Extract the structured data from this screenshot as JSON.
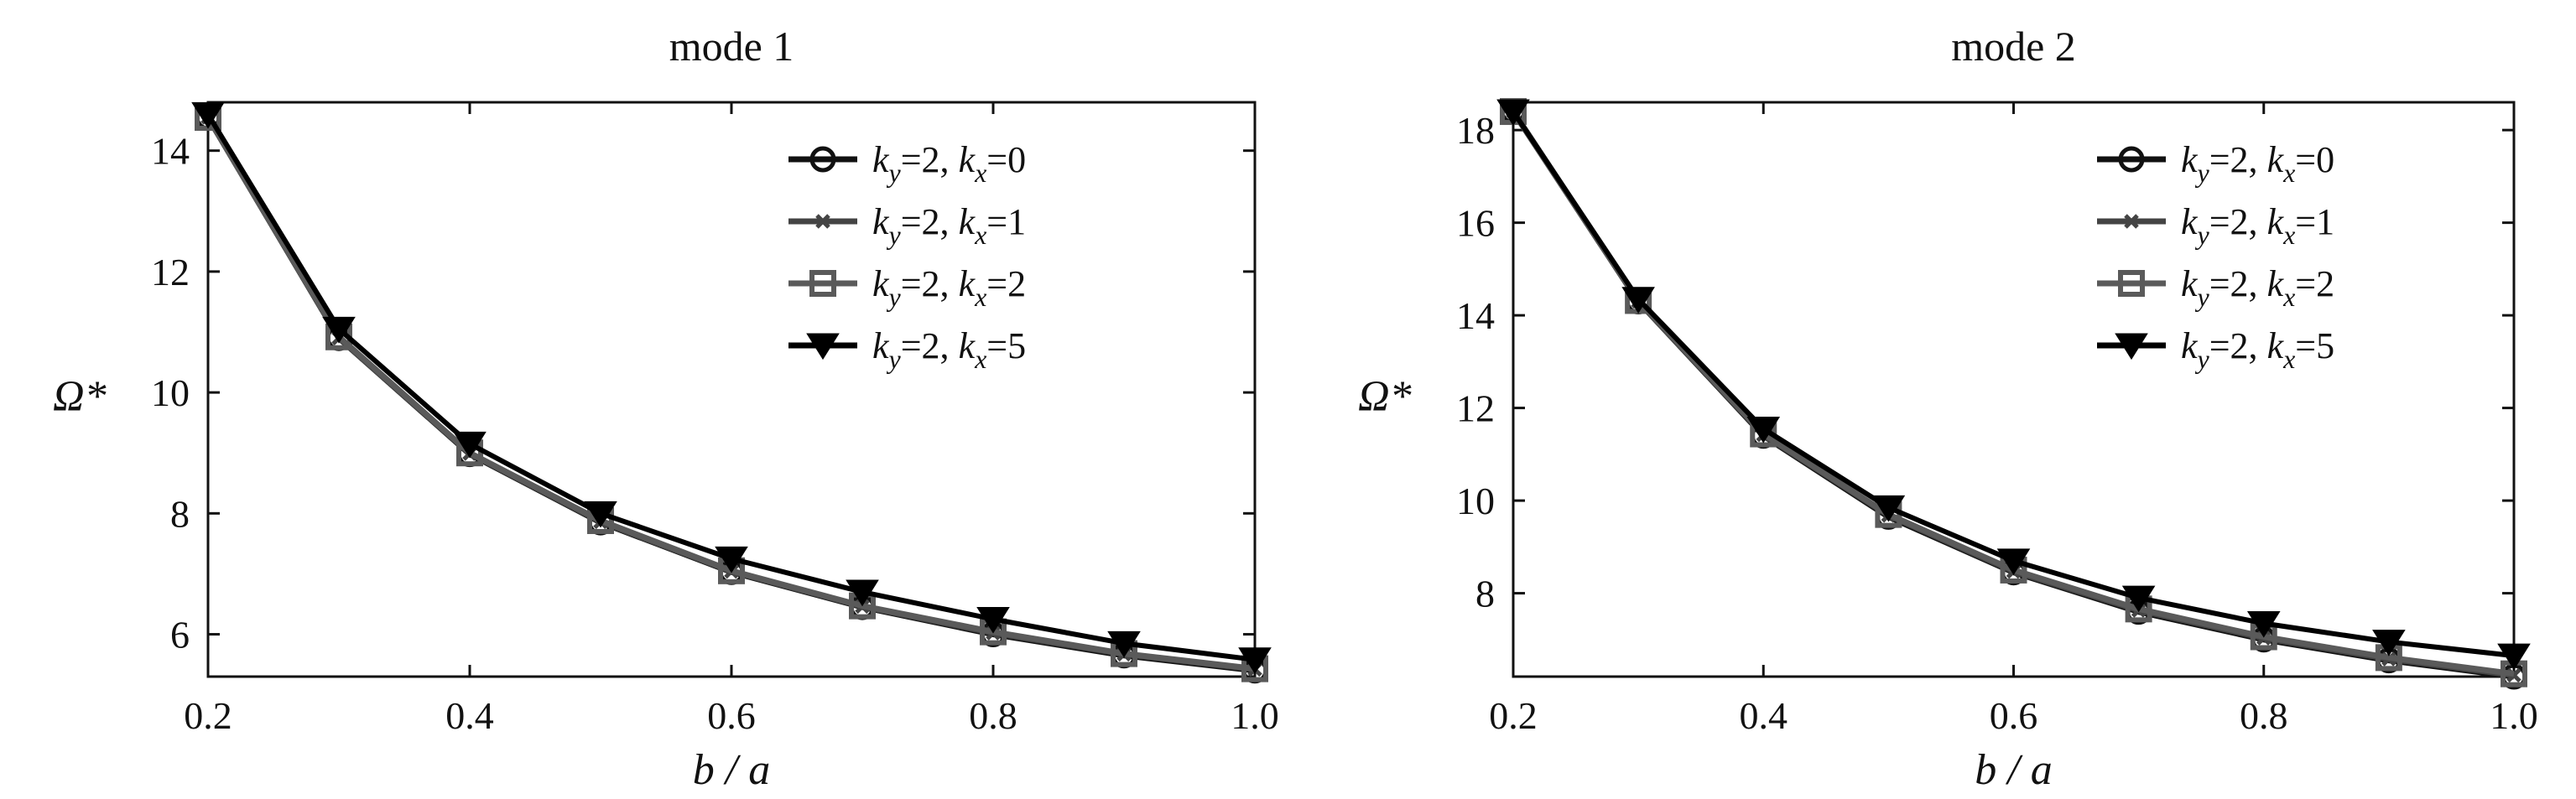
{
  "chart_data": [
    {
      "type": "line",
      "title": "mode 1",
      "xlabel": "b / a",
      "ylabel": "Ω*",
      "xlim": [
        0.2,
        1.0
      ],
      "ylim": [
        5.3,
        14.8
      ],
      "xticks": [
        0.2,
        0.4,
        0.6,
        0.8,
        1.0
      ],
      "xtick_labels": [
        "0.2",
        "0.4",
        "0.6",
        "0.8",
        "1.0"
      ],
      "yticks": [
        6,
        8,
        10,
        12,
        14
      ],
      "ytick_labels": [
        "6",
        "8",
        "10",
        "12",
        "14"
      ],
      "grid": false,
      "legend_position": "top-right",
      "x": [
        0.2,
        0.3,
        0.4,
        0.5,
        0.6,
        0.7,
        0.8,
        0.9,
        1.0
      ],
      "series": [
        {
          "name": "ky=2, kx=0",
          "legend_parts": [
            "k",
            "y",
            "=2, ",
            "k",
            "x",
            "=0"
          ],
          "marker": "circle",
          "color": "#111111",
          "values": [
            14.55,
            10.9,
            8.98,
            7.85,
            7.03,
            6.45,
            6.0,
            5.65,
            5.4
          ]
        },
        {
          "name": "ky=2, kx=1",
          "legend_parts": [
            "k",
            "y",
            "=2, ",
            "k",
            "x",
            "=1"
          ],
          "marker": "x",
          "color": "#444444",
          "values": [
            14.55,
            10.9,
            8.99,
            7.86,
            7.04,
            6.46,
            6.02,
            5.67,
            5.42
          ]
        },
        {
          "name": "ky=2, kx=2",
          "legend_parts": [
            "k",
            "y",
            "=2, ",
            "k",
            "x",
            "=2"
          ],
          "marker": "square",
          "color": "#5a5a5a",
          "values": [
            14.55,
            10.92,
            9.0,
            7.88,
            7.05,
            6.47,
            6.04,
            5.68,
            5.43
          ]
        },
        {
          "name": "ky=2, kx=5",
          "legend_parts": [
            "k",
            "y",
            "=2, ",
            "k",
            "x",
            "=5"
          ],
          "marker": "triangle-down",
          "color": "#000000",
          "values": [
            14.6,
            11.05,
            9.15,
            8.0,
            7.25,
            6.7,
            6.25,
            5.85,
            5.58
          ]
        }
      ]
    },
    {
      "type": "line",
      "title": "mode 2",
      "xlabel": "b / a",
      "ylabel": "Ω*",
      "xlim": [
        0.2,
        1.0
      ],
      "ylim": [
        6.2,
        18.6
      ],
      "xticks": [
        0.2,
        0.4,
        0.6,
        0.8,
        1.0
      ],
      "xtick_labels": [
        "0.2",
        "0.4",
        "0.6",
        "0.8",
        "1.0"
      ],
      "yticks": [
        8,
        10,
        12,
        14,
        16,
        18
      ],
      "ytick_labels": [
        "8",
        "10",
        "12",
        "14",
        "16",
        "18"
      ],
      "grid": false,
      "legend_position": "top-right",
      "x": [
        0.2,
        0.3,
        0.4,
        0.5,
        0.6,
        0.7,
        0.8,
        0.9,
        1.0
      ],
      "series": [
        {
          "name": "ky=2, kx=0",
          "legend_parts": [
            "k",
            "y",
            "=2, ",
            "k",
            "x",
            "=0"
          ],
          "marker": "circle",
          "color": "#111111",
          "values": [
            18.4,
            14.3,
            11.4,
            9.65,
            8.45,
            7.6,
            7.0,
            6.55,
            6.2
          ]
        },
        {
          "name": "ky=2, kx=1",
          "legend_parts": [
            "k",
            "y",
            "=2, ",
            "k",
            "x",
            "=1"
          ],
          "marker": "x",
          "color": "#444444",
          "values": [
            18.4,
            14.3,
            11.42,
            9.68,
            8.47,
            7.63,
            7.03,
            6.58,
            6.23
          ]
        },
        {
          "name": "ky=2, kx=2",
          "legend_parts": [
            "k",
            "y",
            "=2, ",
            "k",
            "x",
            "=2"
          ],
          "marker": "square",
          "color": "#5a5a5a",
          "values": [
            18.4,
            14.32,
            11.44,
            9.7,
            8.5,
            7.66,
            7.06,
            6.61,
            6.26
          ]
        },
        {
          "name": "ky=2, kx=5",
          "legend_parts": [
            "k",
            "y",
            "=2, ",
            "k",
            "x",
            "=5"
          ],
          "marker": "triangle-down",
          "color": "#000000",
          "values": [
            18.4,
            14.35,
            11.55,
            9.85,
            8.7,
            7.9,
            7.35,
            6.95,
            6.65
          ]
        }
      ]
    }
  ]
}
